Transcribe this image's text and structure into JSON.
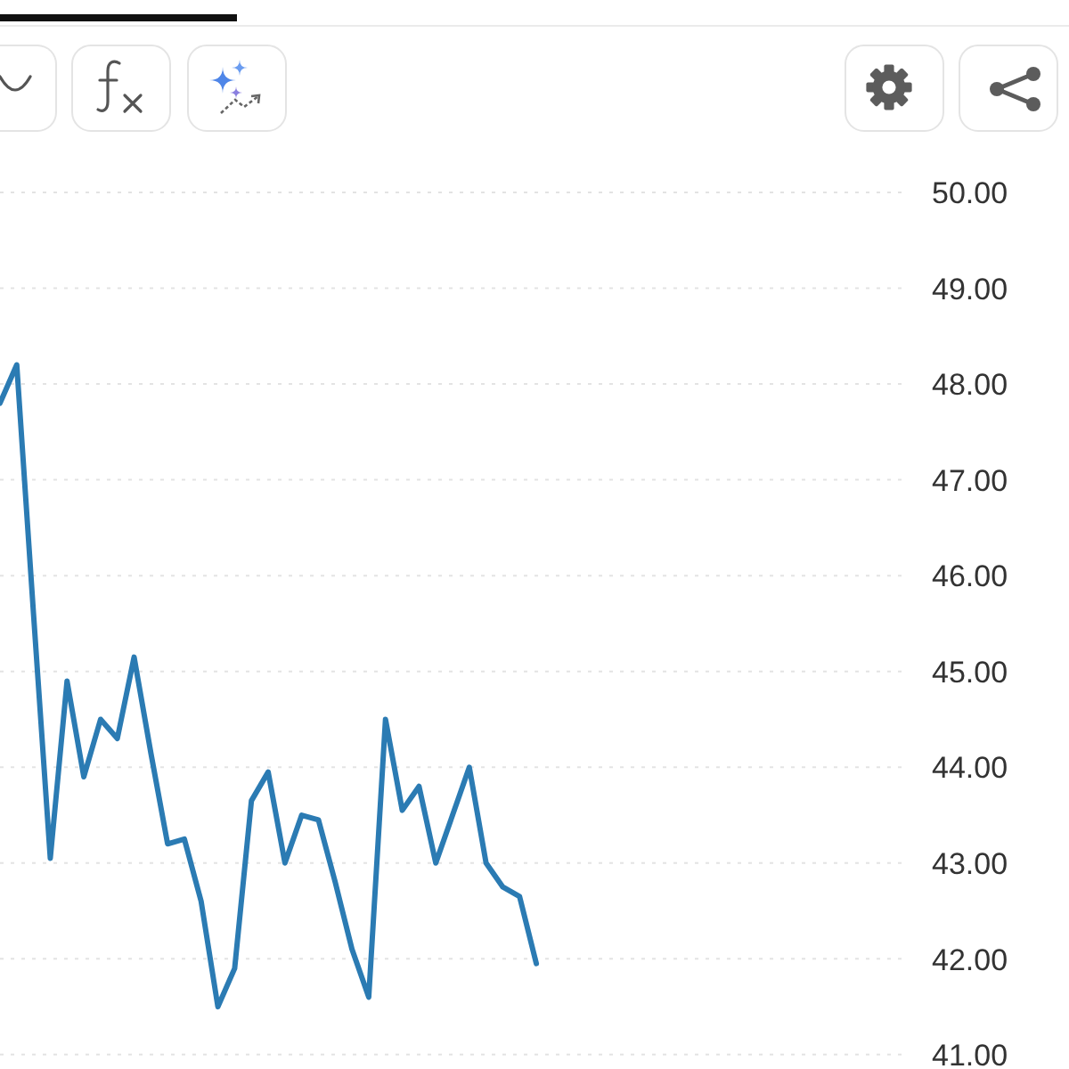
{
  "chart_data": {
    "type": "line",
    "categories": [
      null,
      null,
      null,
      null,
      null,
      null,
      null,
      null,
      null,
      null,
      null,
      null,
      null,
      null,
      null,
      null,
      null,
      null,
      null,
      null,
      null,
      null,
      null,
      null,
      null,
      null,
      null,
      null,
      null,
      null,
      null,
      null,
      null,
      null,
      null,
      null,
      null,
      null,
      null,
      null,
      null,
      null,
      null,
      null,
      null,
      null,
      null,
      null,
      null,
      null,
      null,
      null,
      null,
      null,
      null
    ],
    "values": [
      47.8,
      48.2,
      45.6,
      43.05,
      44.9,
      43.9,
      44.5,
      44.3,
      45.15,
      44.15,
      43.2,
      43.25,
      42.6,
      41.5,
      41.9,
      43.65,
      43.95,
      43.0,
      43.5,
      43.45,
      42.8,
      42.1,
      41.6,
      44.5,
      43.55,
      43.8,
      43.0,
      43.5,
      44.0,
      43.0,
      42.75,
      42.65,
      41.95,
      null,
      null,
      null,
      null,
      null,
      null,
      null,
      null,
      null,
      null,
      null,
      null,
      null,
      null,
      null,
      null,
      null,
      null,
      null,
      null,
      null,
      null
    ],
    "color": "#2b7bb3",
    "ylim": [
      40.85,
      50
    ],
    "yticks": [
      {
        "value": 41,
        "label": "41.00"
      },
      {
        "value": 42,
        "label": "42.00"
      },
      {
        "value": 43,
        "label": "43.00"
      },
      {
        "value": 44,
        "label": "44.00"
      },
      {
        "value": 45,
        "label": "45.00"
      },
      {
        "value": 46,
        "label": "46.00"
      },
      {
        "value": 47,
        "label": "47.00"
      },
      {
        "value": 48,
        "label": "48.00"
      },
      {
        "value": 49,
        "label": "49.00"
      },
      {
        "value": 50,
        "label": "50.00"
      }
    ],
    "grid": "y"
  }
}
